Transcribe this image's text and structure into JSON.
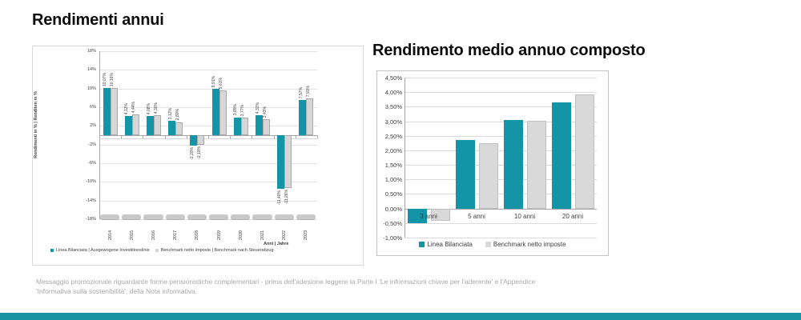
{
  "page": {
    "footer": "Messaggio promozionale riguardante forme pensionistiche complementari - prima dell'adesione leggere la Parte I 'Le informazioni chiave per l'aderente' e l'Appendice 'Informativa sulla sostenibilità', della Nota informativa.",
    "accent_color": "#1494a7",
    "bottom_bar_color": "#1793a6"
  },
  "chart_data": [
    {
      "type": "bar",
      "title": "Rendimenti annui",
      "ylabel": "Rendimenti in % | Renditen in %",
      "xlabel": "Anni | Jahre",
      "ylim": [
        -18,
        18
      ],
      "grid": true,
      "legend_position": "bottom",
      "yticks": [
        {
          "v": 18,
          "label": "18%"
        },
        {
          "v": 14,
          "label": "14%"
        },
        {
          "v": 10,
          "label": "10%"
        },
        {
          "v": 6,
          "label": "6%"
        },
        {
          "v": 2,
          "label": "2%"
        },
        {
          "v": -2,
          "label": "-2%"
        },
        {
          "v": -6,
          "label": "-6%"
        },
        {
          "v": -10,
          "label": "-10%"
        },
        {
          "v": -14,
          "label": "-14%"
        },
        {
          "v": -18,
          "label": "-18%"
        }
      ],
      "categories": [
        "2014",
        "2015",
        "2016",
        "2017",
        "2018",
        "2019",
        "2020",
        "2021",
        "2022",
        "2023"
      ],
      "series": [
        {
          "name": "Linea Bilanciata | Ausgewogene Investitionslinie",
          "color": "#1494a7",
          "values": [
            10.07,
            4.12,
            4.08,
            3.12,
            -2.2,
            9.91,
            3.85,
            4.32,
            -11.4,
            7.57
          ],
          "labels": [
            "10,07%",
            "4,12%",
            "4,08%",
            "3,12%",
            "-2,20%",
            "9,91%",
            "3,85%",
            "4,32%",
            "-11,40%",
            "7,57%"
          ]
        },
        {
          "name": "Benchmark netto imposte | Benchmark nach Steuerabzug",
          "color": "#d6d6d6",
          "values": [
            10.16,
            4.44,
            4.3,
            2.8,
            -2.1,
            9.61,
            3.77,
            3.43,
            -11.26,
            7.91
          ],
          "labels": [
            "10,16%",
            "4,44%",
            "4,30%",
            "2,80%",
            "-2,10%",
            "9,61%",
            "3,77%",
            "3,43%",
            "-11,26%",
            "7,91%"
          ]
        }
      ]
    },
    {
      "type": "bar",
      "title": "Rendimento medio annuo composto",
      "ylabel": "",
      "xlabel": "",
      "ylim": [
        -1.0,
        4.5
      ],
      "grid": true,
      "legend_position": "bottom",
      "yticks": [
        {
          "v": 4.5,
          "label": "4,50%"
        },
        {
          "v": 4.0,
          "label": "4,00%"
        },
        {
          "v": 3.5,
          "label": "3,50%"
        },
        {
          "v": 3.0,
          "label": "3,00%"
        },
        {
          "v": 2.5,
          "label": "2,50%"
        },
        {
          "v": 2.0,
          "label": "2,00%"
        },
        {
          "v": 1.5,
          "label": "1,50%"
        },
        {
          "v": 1.0,
          "label": "1,00%"
        },
        {
          "v": 0.5,
          "label": "0,50%"
        },
        {
          "v": 0.0,
          "label": "0,00%"
        },
        {
          "v": -0.5,
          "label": "-0,50%"
        },
        {
          "v": -1.0,
          "label": "-1,00%"
        }
      ],
      "categories": [
        "3 anni",
        "5 anni",
        "10 anni",
        "20 anni"
      ],
      "series": [
        {
          "name": "Linea Bilanciata",
          "color": "#1494a7",
          "values": [
            -0.5,
            2.35,
            3.05,
            3.65
          ]
        },
        {
          "name": "Benchmark netto imposte",
          "color": "#d9d9d9",
          "values": [
            -0.42,
            2.25,
            3.02,
            3.92
          ]
        }
      ]
    }
  ]
}
